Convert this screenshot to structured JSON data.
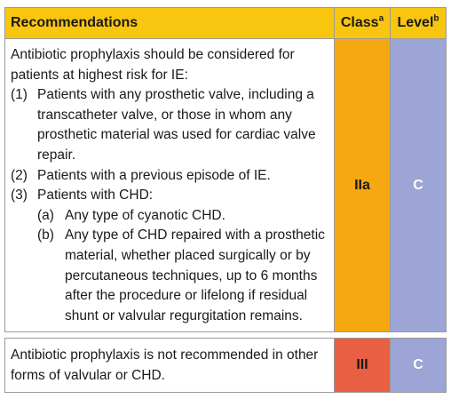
{
  "header": {
    "recommendations": "Recommendations",
    "class_label": "Class",
    "class_sup": "a",
    "level_label": "Level",
    "level_sup": "b"
  },
  "row1": {
    "intro": "Antibiotic prophylaxis should be considered for patients at highest risk for IE:",
    "items": [
      {
        "num": "(1)",
        "text": "Patients with any prosthetic valve, including a transcatheter valve, or those in whom any prosthetic material was used for cardiac valve repair."
      },
      {
        "num": "(2)",
        "text": "Patients with a previous episode of IE."
      },
      {
        "num": "(3)",
        "text": "Patients with CHD:"
      }
    ],
    "subitems": [
      {
        "num": "(a)",
        "text": "Any type of cyanotic CHD."
      },
      {
        "num": "(b)",
        "text": "Any type of CHD repaired with a prosthetic material, whether placed surgically or by percutaneous techniques, up to 6 months after the procedure or lifelong if residual shunt or valvular regurgitation remains."
      }
    ],
    "class": "IIa",
    "level": "C"
  },
  "row2": {
    "text": "Antibiotic prophylaxis is not recommended in other forms of valvular or CHD.",
    "class": "III",
    "level": "C"
  },
  "colors": {
    "header_bg": "#f9c60f",
    "class_iia": "#f5a80f",
    "class_iii": "#e95f42",
    "level_c": "#9da4d6"
  }
}
